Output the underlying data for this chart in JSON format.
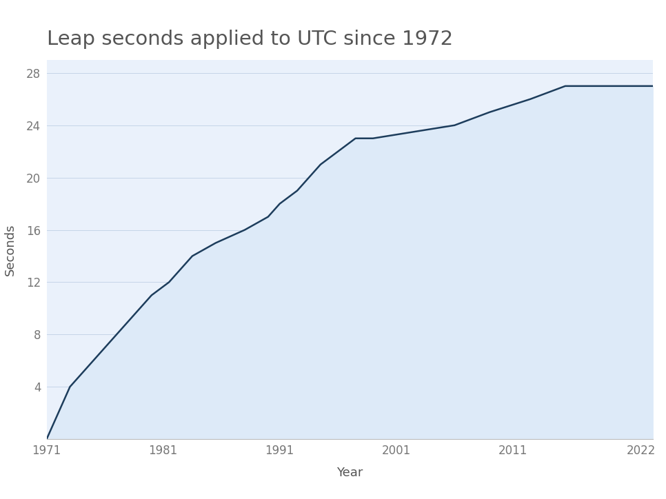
{
  "title": "Leap seconds applied to UTC since 1972",
  "xlabel": "Year",
  "ylabel": "Seconds",
  "line_color": "#1d3d5c",
  "fill_color": "#ddeaf8",
  "bg_color": "#ffffff",
  "plot_bg_color": "#eaf1fb",
  "ylim": [
    0,
    29
  ],
  "xlim": [
    1971,
    2023
  ],
  "yticks": [
    4,
    8,
    12,
    16,
    20,
    24,
    28
  ],
  "xticks": [
    1971,
    1981,
    1991,
    2001,
    2011,
    2022
  ],
  "title_fontsize": 21,
  "axis_label_fontsize": 13,
  "tick_fontsize": 12,
  "title_color": "#555555",
  "tick_color": "#777777",
  "label_color": "#555555",
  "leap_second_data": [
    [
      1971.0,
      0
    ],
    [
      1972.0,
      2
    ],
    [
      1972.5,
      3
    ],
    [
      1973.0,
      4
    ],
    [
      1974.0,
      5
    ],
    [
      1975.0,
      6
    ],
    [
      1976.0,
      7
    ],
    [
      1977.0,
      8
    ],
    [
      1978.0,
      9
    ],
    [
      1979.0,
      10
    ],
    [
      1980.0,
      11
    ],
    [
      1981.5,
      12
    ],
    [
      1982.5,
      13
    ],
    [
      1983.5,
      14
    ],
    [
      1985.5,
      15
    ],
    [
      1988.0,
      16
    ],
    [
      1990.0,
      17
    ],
    [
      1991.0,
      18
    ],
    [
      1992.5,
      19
    ],
    [
      1993.5,
      20
    ],
    [
      1994.5,
      21
    ],
    [
      1996.0,
      22
    ],
    [
      1997.5,
      23
    ],
    [
      1999.0,
      23
    ],
    [
      2006.0,
      24
    ],
    [
      2009.0,
      25
    ],
    [
      2012.5,
      26
    ],
    [
      2015.5,
      27
    ],
    [
      2023.0,
      27
    ]
  ]
}
